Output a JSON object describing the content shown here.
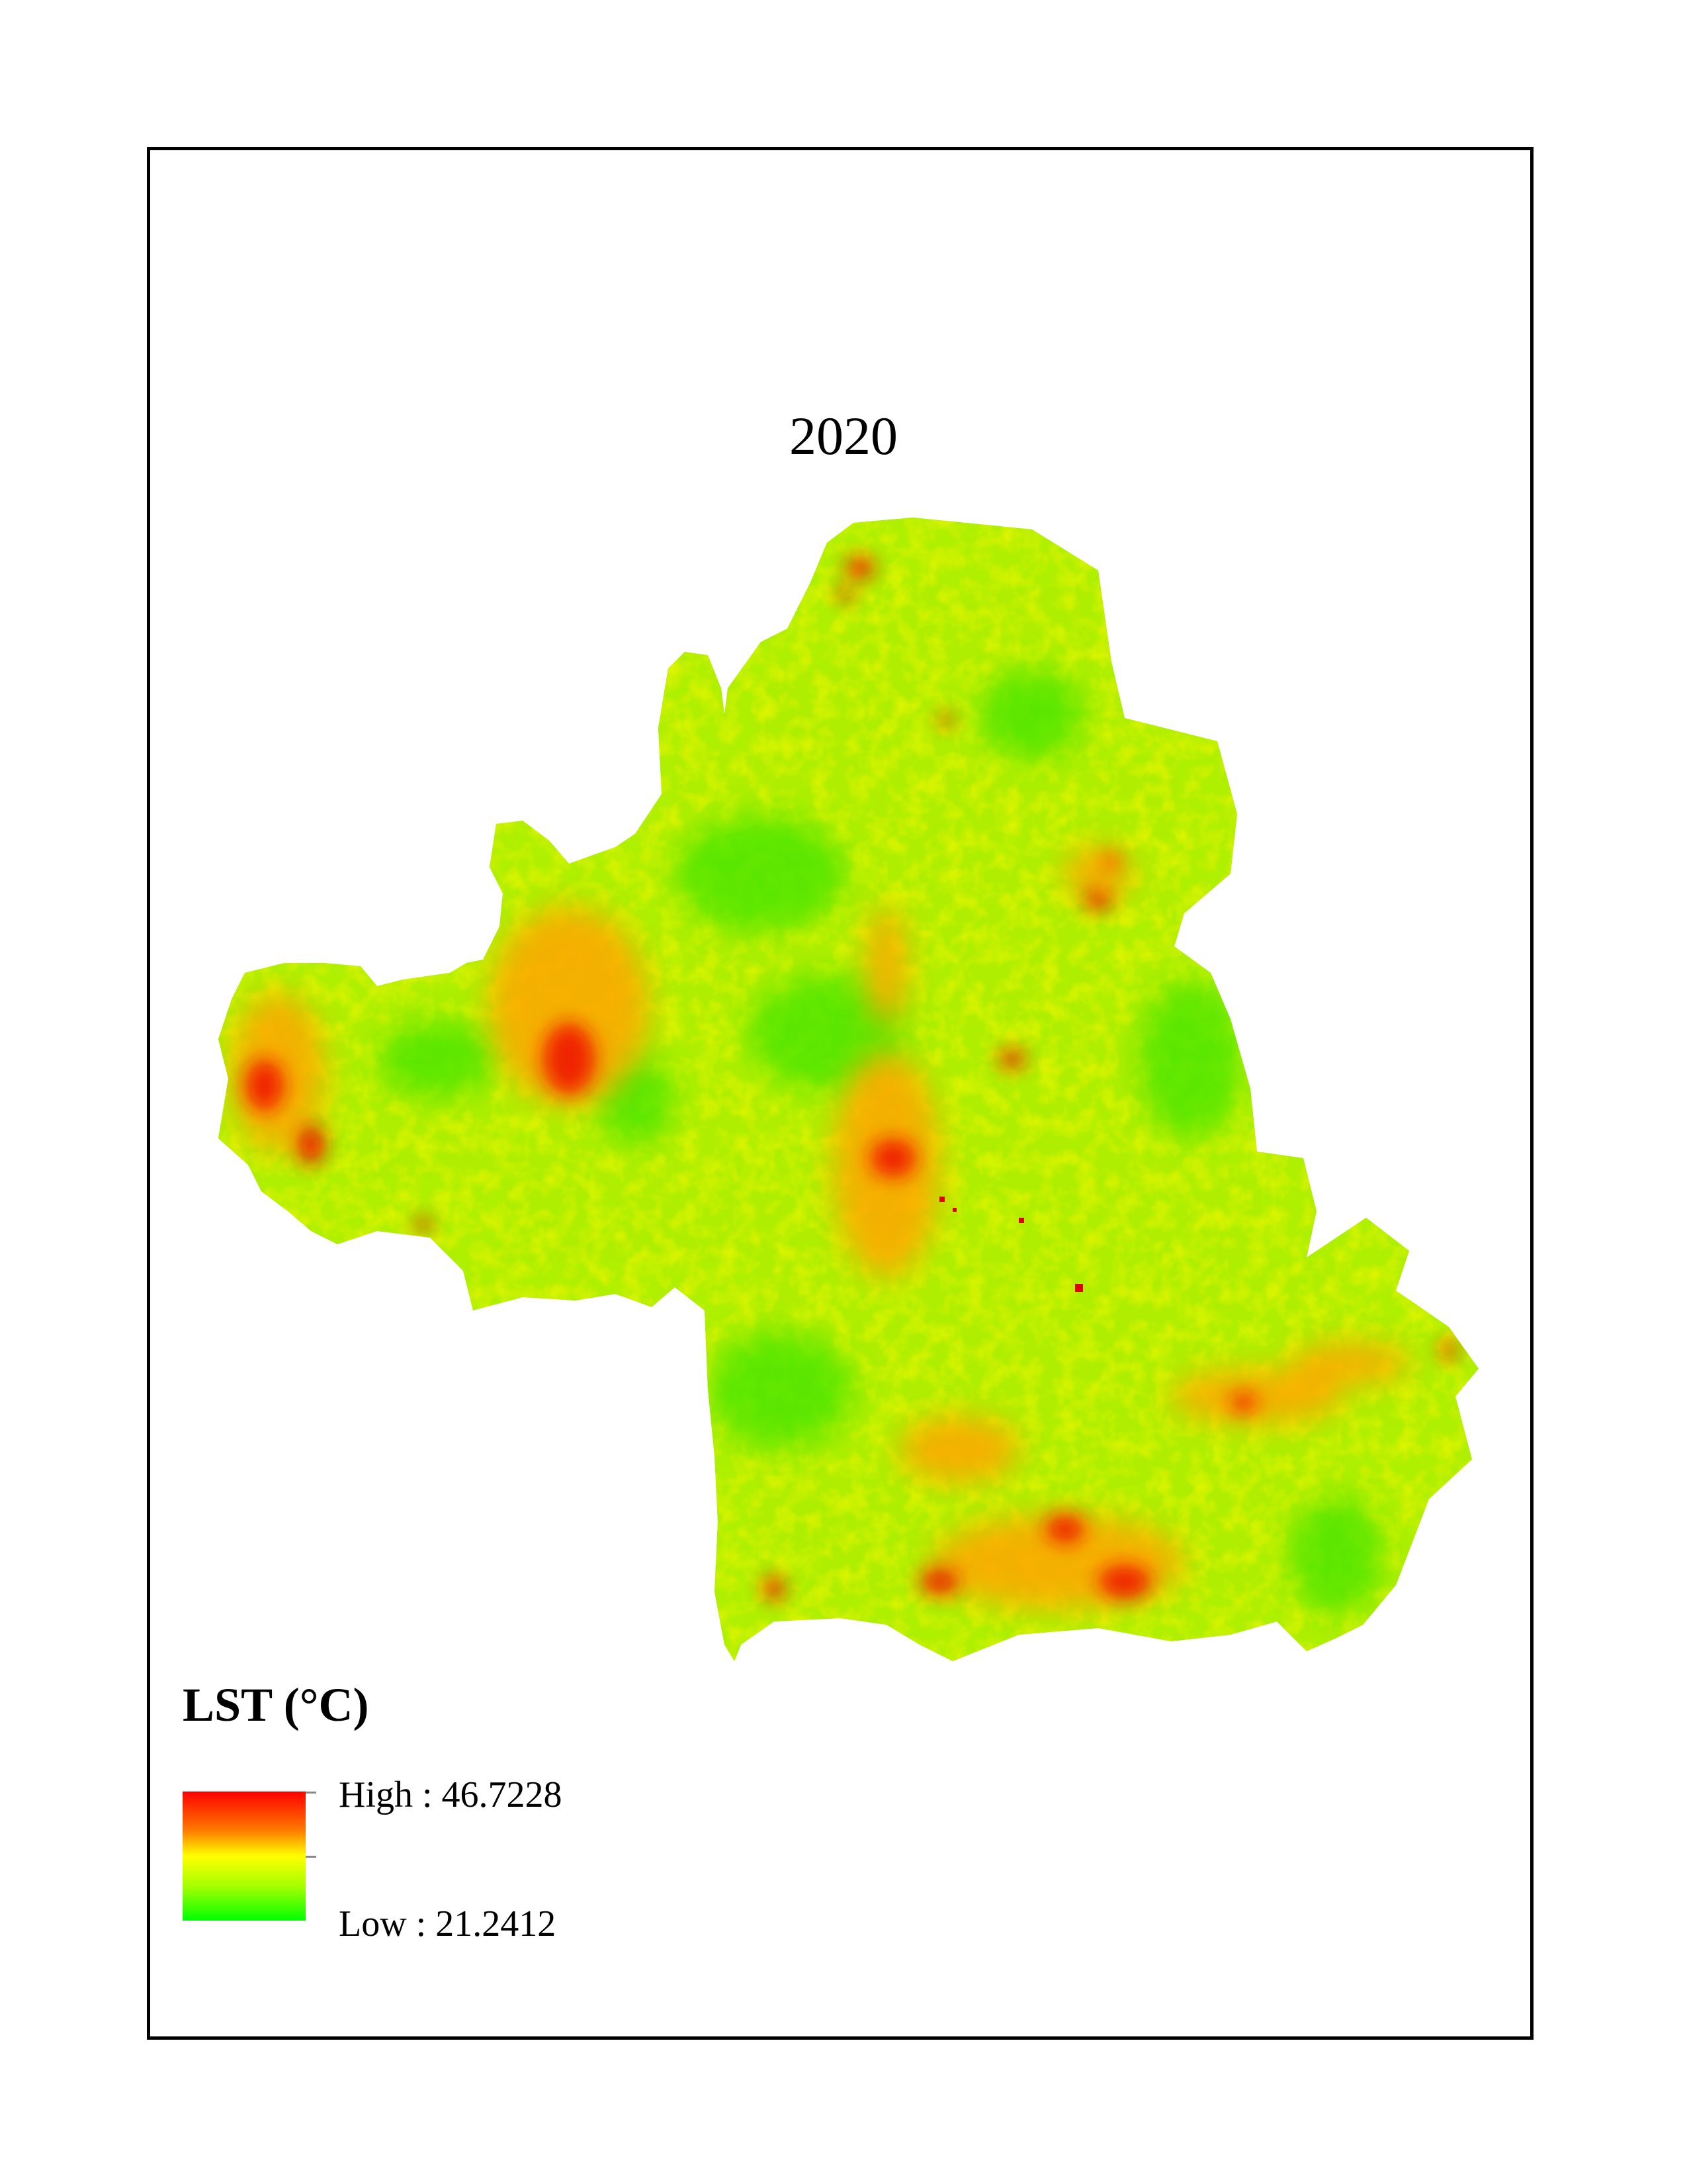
{
  "map": {
    "title": "2020",
    "legend": {
      "title": "LST (°C)",
      "high_label": "High : 46.7228",
      "low_label": "Low : 21.2412",
      "high_value": 46.7228,
      "low_value": 21.2412,
      "ramp_colors": [
        "#ff0000",
        "#ff7a00",
        "#ffff00",
        "#9eff00",
        "#00ff00"
      ]
    }
  }
}
